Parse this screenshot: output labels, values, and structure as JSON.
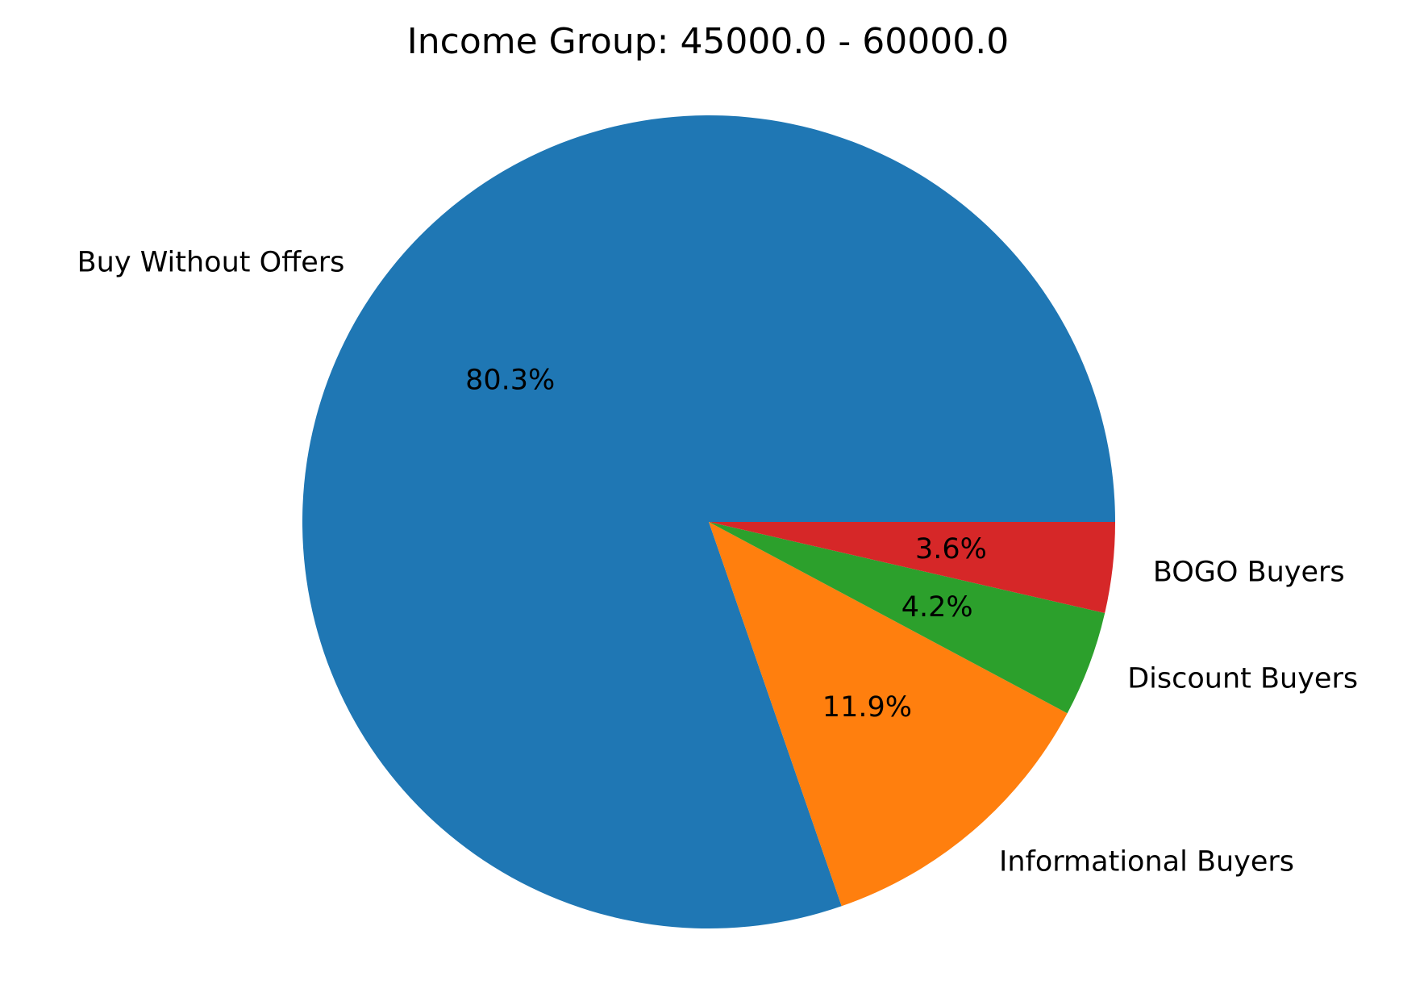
{
  "chart_data": {
    "type": "pie",
    "title": "Income Group: 45000.0 - 60000.0",
    "start_angle_deg": 0,
    "direction": "counterclockwise",
    "slices": [
      {
        "label": "Buy Without Offers",
        "value": 80.3,
        "pct_label": "80.3%",
        "color": "#1f77b4"
      },
      {
        "label": "Informational Buyers",
        "value": 11.9,
        "pct_label": "11.9%",
        "color": "#ff7f0e"
      },
      {
        "label": "Discount Buyers",
        "value": 4.2,
        "pct_label": "4.2%",
        "color": "#2ca02c"
      },
      {
        "label": "BOGO Buyers",
        "value": 3.6,
        "pct_label": "3.6%",
        "color": "#d62728"
      }
    ]
  }
}
